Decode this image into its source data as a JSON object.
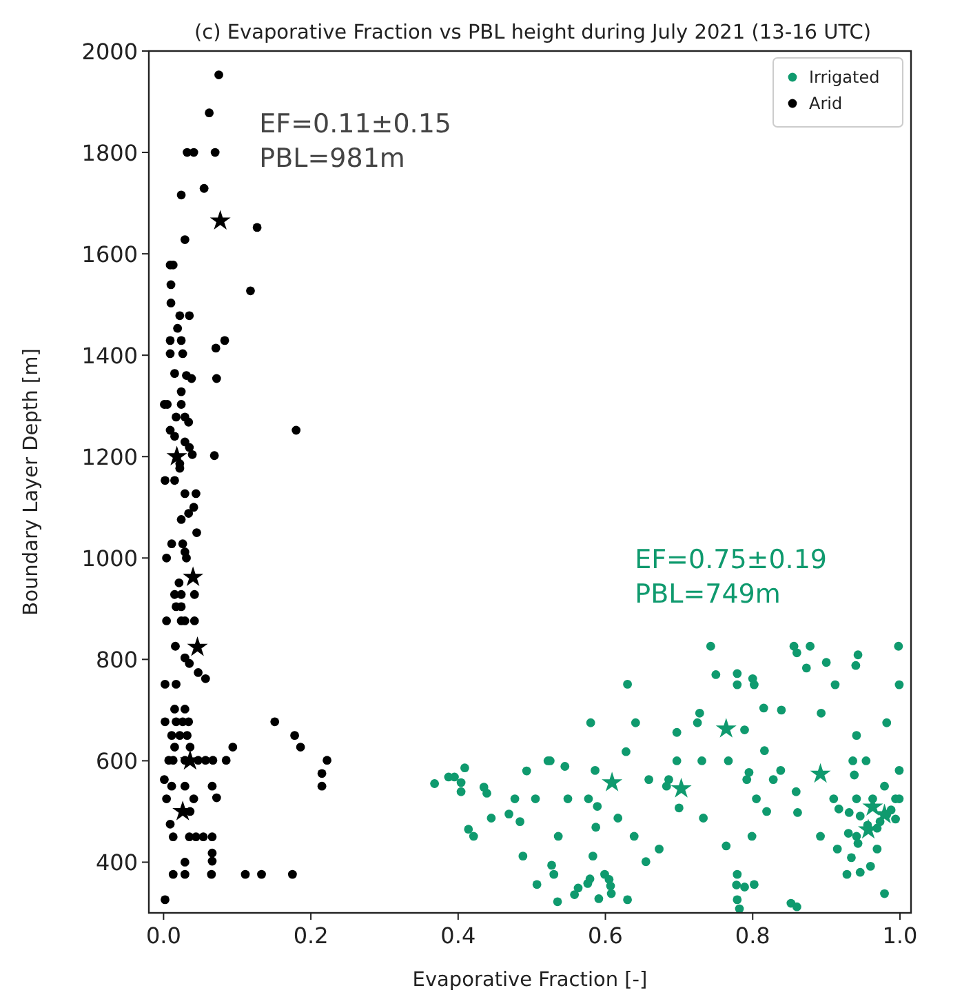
{
  "chart_data": {
    "type": "scatter",
    "title": "(c) Evaporative Fraction vs PBL height during July 2021 (13-16 UTC)",
    "xlabel": "Evaporative Fraction [-]",
    "ylabel": "Boundary Layer Depth [m]",
    "xlim": [
      -0.02,
      1.015
    ],
    "ylim": [
      300,
      2000
    ],
    "xticks": [
      {
        "value": 0,
        "label": "0.0"
      },
      {
        "value": 0.2,
        "label": "0.2"
      },
      {
        "value": 0.4,
        "label": "0.4"
      },
      {
        "value": 0.6,
        "label": "0.6"
      },
      {
        "value": 0.8,
        "label": "0.8"
      },
      {
        "value": 1,
        "label": "1.0"
      }
    ],
    "yticks": [
      400,
      600,
      800,
      1000,
      1200,
      1400,
      1600,
      1800,
      2000
    ],
    "grid": false,
    "legend": "top right",
    "marker": "circle",
    "annotations": [
      "EF=0.11±0.15\nPBL=981m",
      "EF=0.75±0.19\nPBL=749m"
    ],
    "series": [
      {
        "name": "Irrigated",
        "color": "#0f9a6e",
        "x": [
          0.63,
          0.58,
          0.641,
          0.628,
          0.522,
          0.525,
          0.409,
          0.493,
          0.545,
          0.586,
          0.387,
          0.395,
          0.368,
          0.404,
          0.404,
          0.435,
          0.439,
          0.659,
          0.477,
          0.505,
          0.549,
          0.577,
          0.589,
          0.445,
          0.469,
          0.484,
          0.617,
          0.414,
          0.421,
          0.587,
          0.536,
          0.639,
          0.673,
          0.488,
          0.583,
          0.655,
          0.527,
          0.53,
          0.507,
          0.599,
          0.605,
          0.607,
          0.608,
          0.579,
          0.576,
          0.563,
          0.558,
          0.591,
          0.63,
          0.535,
          0.743,
          0.856,
          0.86,
          0.878,
          0.998,
          0.9,
          0.943,
          0.94,
          0.873,
          0.75,
          0.779,
          0.779,
          0.8,
          0.802,
          0.912,
          0.999,
          0.815,
          0.839,
          0.893,
          0.728,
          0.725,
          0.789,
          0.697,
          0.982,
          0.941,
          0.816,
          0.697,
          0.731,
          0.767,
          0.936,
          0.954,
          0.795,
          0.792,
          0.828,
          0.838,
          0.938,
          0.999,
          0.686,
          0.683,
          0.7,
          0.733,
          0.805,
          0.819,
          0.859,
          0.861,
          0.91,
          0.917,
          0.931,
          0.941,
          0.963,
          0.979,
          0.994,
          0.999,
          0.946,
          0.941,
          0.93,
          0.943,
          0.956,
          0.969,
          0.973,
          0.982,
          0.988,
          0.994,
          0.969,
          0.96,
          0.946,
          0.934,
          0.928,
          0.915,
          0.892,
          0.979,
          0.799,
          0.764,
          0.779,
          0.778,
          0.789,
          0.802,
          0.779,
          0.782,
          0.852,
          0.86
        ],
        "values": [
          751,
          675,
          675,
          618,
          600,
          600,
          586,
          580,
          589,
          581,
          568,
          568,
          555,
          557,
          539,
          548,
          536,
          563,
          525,
          525,
          525,
          525,
          510,
          487,
          495,
          480,
          487,
          465,
          451,
          469,
          451,
          451,
          426,
          412,
          412,
          401,
          394,
          376,
          356,
          376,
          366,
          353,
          338,
          367,
          358,
          349,
          336,
          328,
          326,
          322,
          826,
          826,
          813,
          826,
          826,
          794,
          809,
          788,
          783,
          770,
          772,
          750,
          762,
          750,
          750,
          750,
          704,
          700,
          694,
          694,
          675,
          661,
          656,
          675,
          650,
          620,
          600,
          600,
          600,
          600,
          600,
          577,
          563,
          563,
          581,
          572,
          581,
          563,
          550,
          507,
          487,
          525,
          500,
          539,
          498,
          525,
          505,
          498,
          525,
          525,
          550,
          525,
          525,
          491,
          451,
          457,
          437,
          473,
          467,
          480,
          494,
          503,
          485,
          426,
          392,
          380,
          409,
          376,
          426,
          451,
          338,
          451,
          432,
          376,
          355,
          351,
          356,
          326,
          308,
          319,
          312
        ]
      },
      {
        "name": "Arid",
        "color": "#000000",
        "x": [
          0.075,
          0.062,
          0.032,
          0.041,
          0.07,
          0.024,
          0.055,
          0.127,
          0.029,
          0.009,
          0.013,
          0.01,
          0.118,
          0.01,
          0.022,
          0.035,
          0.019,
          0.009,
          0.024,
          0.083,
          0.071,
          0.009,
          0.026,
          0.015,
          0.031,
          0.038,
          0.072,
          0.024,
          0.001,
          0.005,
          0.024,
          0.017,
          0.029,
          0.034,
          0.009,
          0.015,
          0.18,
          0.029,
          0.035,
          0.039,
          0.069,
          0.022,
          0.022,
          0.002,
          0.015,
          0.029,
          0.044,
          0.041,
          0.034,
          0.024,
          0.045,
          0.011,
          0.026,
          0.029,
          0.031,
          0.004,
          0.021,
          0.015,
          0.024,
          0.042,
          0.017,
          0.024,
          0.004,
          0.024,
          0.029,
          0.042,
          0.016,
          0.029,
          0.035,
          0.047,
          0.057,
          0.002,
          0.017,
          0.015,
          0.029,
          0.002,
          0.017,
          0.026,
          0.034,
          0.151,
          0.178,
          0.186,
          0.011,
          0.022,
          0.032,
          0.015,
          0.036,
          0.094,
          0.007,
          0.013,
          0.029,
          0.047,
          0.057,
          0.067,
          0.085,
          0.222,
          0.215,
          0.215,
          0.001,
          0.011,
          0.029,
          0.066,
          0.072,
          0.004,
          0.041,
          0.036,
          0.009,
          0.013,
          0.035,
          0.044,
          0.054,
          0.066,
          0.066,
          0.066,
          0.029,
          0.013,
          0.029,
          0.065,
          0.111,
          0.133,
          0.175,
          0.002
        ],
        "values": [
          1953,
          1878,
          1800,
          1800,
          1800,
          1716,
          1729,
          1652,
          1628,
          1578,
          1578,
          1539,
          1527,
          1503,
          1478,
          1478,
          1453,
          1429,
          1429,
          1429,
          1414,
          1403,
          1403,
          1364,
          1360,
          1354,
          1354,
          1328,
          1303,
          1303,
          1303,
          1278,
          1278,
          1268,
          1252,
          1240,
          1252,
          1229,
          1218,
          1204,
          1202,
          1186,
          1177,
          1153,
          1153,
          1127,
          1127,
          1100,
          1088,
          1076,
          1050,
          1028,
          1028,
          1012,
          1000,
          1000,
          951,
          928,
          928,
          928,
          904,
          904,
          876,
          876,
          876,
          876,
          826,
          803,
          792,
          774,
          762,
          751,
          751,
          702,
          702,
          677,
          677,
          677,
          677,
          677,
          650,
          627,
          650,
          650,
          650,
          627,
          627,
          627,
          601,
          601,
          601,
          601,
          601,
          601,
          601,
          601,
          575,
          550,
          563,
          550,
          550,
          550,
          527,
          525,
          525,
          500,
          475,
          450,
          450,
          450,
          450,
          450,
          418,
          402,
          400,
          376,
          376,
          376,
          376,
          376,
          376,
          326
        ]
      },
      {
        "color": "#0f9a6e",
        "marker": "star",
        "x": [
          0.609,
          0.764,
          0.703,
          0.892,
          0.963,
          0.979,
          0.957
        ],
        "values": [
          557,
          663,
          545,
          574,
          509,
          494,
          464
        ]
      },
      {
        "color": "#000000",
        "marker": "star",
        "x": [
          0.077,
          0.018,
          0.04,
          0.046,
          0.036,
          0.026
        ],
        "values": [
          1665,
          1200,
          962,
          824,
          600,
          500
        ]
      }
    ]
  }
}
